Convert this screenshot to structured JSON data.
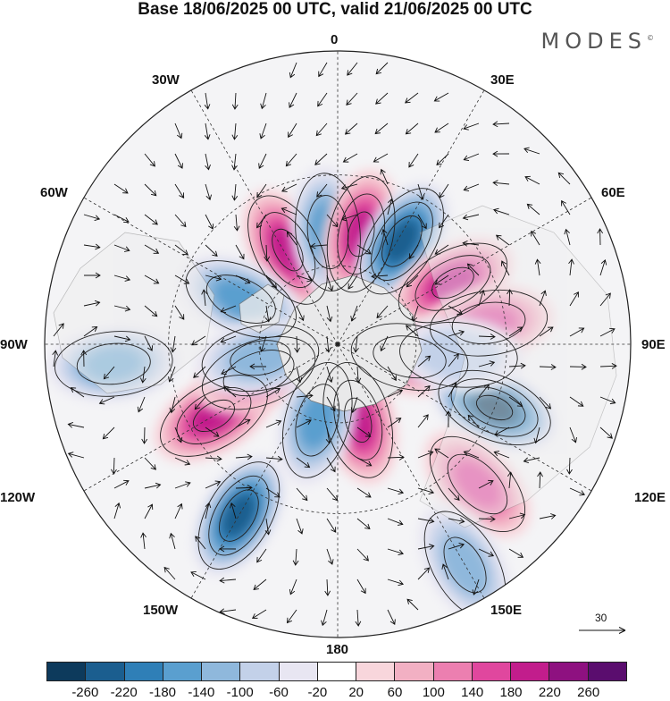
{
  "title": "Base 18/06/2025 00 UTC, valid 21/06/2025 00 UTC",
  "brand": "MODES",
  "brand_mark": "©",
  "longitude_labels": {
    "top": "0",
    "top_left": "30W",
    "top_right": "30E",
    "upper_left": "60W",
    "upper_right": "60E",
    "left": "90W",
    "right": "90E",
    "lower_left": "120W",
    "lower_right": "120E",
    "bottom_left": "150W",
    "bottom_right": "150E",
    "bottom": "180"
  },
  "vector_reference": {
    "label": "30"
  },
  "colorbar": {
    "tick_labels": [
      "-260",
      "-220",
      "-180",
      "-140",
      "-100",
      "-60",
      "-20",
      "20",
      "60",
      "100",
      "140",
      "180",
      "220",
      "260"
    ],
    "colors": [
      "#0d3a5c",
      "#1b5e8f",
      "#2f7fb7",
      "#5a9fcf",
      "#8fb8dc",
      "#c3d1e9",
      "#e8e6f2",
      "#ffffff",
      "#f8d6dc",
      "#f2b0c3",
      "#ec7fb0",
      "#e0479e",
      "#c21d8c",
      "#8e1180",
      "#5a0d6e"
    ]
  },
  "anomaly_centers": [
    {
      "lon": -28,
      "lat": 50,
      "sign": "pos",
      "level": 180
    },
    {
      "lon": -5,
      "lat": 48,
      "sign": "neg",
      "level": -140
    },
    {
      "lon": 12,
      "lat": 48,
      "sign": "pos",
      "level": 180
    },
    {
      "lon": 32,
      "lat": 45,
      "sign": "neg",
      "level": -220
    },
    {
      "lon": 62,
      "lat": 42,
      "sign": "pos",
      "level": 180
    },
    {
      "lon": 82,
      "lat": 35,
      "sign": "pos",
      "level": 140
    },
    {
      "lon": 100,
      "lat": 62,
      "sign": "pos",
      "level": 140
    },
    {
      "lon": 112,
      "lat": 30,
      "sign": "neg",
      "level": -260
    },
    {
      "lon": 135,
      "lat": 22,
      "sign": "pos",
      "level": 140
    },
    {
      "lon": 165,
      "lat": 60,
      "sign": "pos",
      "level": 180
    },
    {
      "lon": -150,
      "lat": 22,
      "sign": "neg",
      "level": -220
    },
    {
      "lon": -120,
      "lat": 38,
      "sign": "pos",
      "level": 180
    },
    {
      "lon": -110,
      "lat": 58,
      "sign": "pos",
      "level": 140
    },
    {
      "lon": -165,
      "lat": 60,
      "sign": "neg",
      "level": -140
    },
    {
      "lon": -65,
      "lat": 50,
      "sign": "neg",
      "level": -140
    },
    {
      "lon": -95,
      "lat": 15,
      "sign": "neg",
      "level": -140
    },
    {
      "lon": 150,
      "lat": 8,
      "sign": "neg",
      "level": -100
    },
    {
      "lon": -100,
      "lat": 60,
      "sign": "neg",
      "level": -100
    },
    {
      "lon": 95,
      "lat": 45,
      "sign": "neg",
      "level": -60
    }
  ]
}
